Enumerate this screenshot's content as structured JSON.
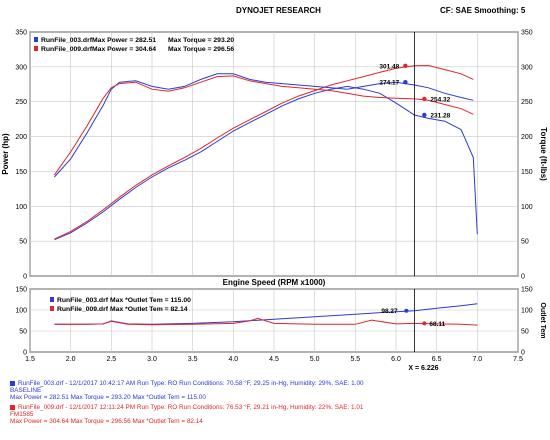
{
  "header": {
    "title": "DYNOJET RESEARCH",
    "right": "CF: SAE  Smoothing: 5"
  },
  "colors": {
    "run1": "#2b3bd6",
    "run2": "#e0262a",
    "grid": "#c8c8c8",
    "marker": "#000000"
  },
  "chart_data": [
    {
      "type": "line",
      "xlabel": "Engine Speed (RPM x1000)",
      "ylabel": "Power (hp)",
      "y2label": "Torque (ft-lbs)",
      "xlim": [
        1.5,
        7.5
      ],
      "ylim": [
        0,
        350
      ],
      "x_ticks": [
        "1.5",
        "2.0",
        "2.5",
        "3.0",
        "3.5",
        "4.0",
        "4.5",
        "5.0",
        "5.5",
        "6.0",
        "6.5",
        "7.0",
        "7.5"
      ],
      "y_ticks": [
        "0",
        "50",
        "100",
        "150",
        "200",
        "250",
        "300",
        "350"
      ],
      "y2_ticks": [
        "0",
        "50",
        "100",
        "150",
        "200",
        "250",
        "300",
        "350"
      ],
      "legend": [
        {
          "run": "RunFile_003.drf",
          "max_power_label": "Max Power =",
          "max_power": "282.51",
          "max_torque_label": "Max Torque =",
          "max_torque": "293.20"
        },
        {
          "run": "RunFile_009.drf",
          "max_power_label": "Max Power =",
          "max_power": "304.64",
          "max_torque_label": "Max Torque =",
          "max_torque": "296.56"
        }
      ],
      "cursor": {
        "x": 6.226,
        "label": "X = 6.226"
      },
      "value_labels": [
        "301.48",
        "274.17",
        "254.32",
        "231.28"
      ],
      "series": [
        {
          "name": "RunFile_003.drf Power",
          "color": "run1",
          "x": [
            1.8,
            2.0,
            2.2,
            2.4,
            2.6,
            2.8,
            3.0,
            3.2,
            3.4,
            3.6,
            3.8,
            4.0,
            4.2,
            4.4,
            4.6,
            4.8,
            5.0,
            5.2,
            5.4,
            5.6,
            5.8,
            6.0,
            6.226,
            6.4,
            6.6,
            6.8,
            6.95,
            7.0
          ],
          "y": [
            52,
            62,
            76,
            92,
            110,
            127,
            142,
            155,
            166,
            178,
            193,
            208,
            220,
            232,
            244,
            254,
            262,
            268,
            272,
            268,
            262,
            248,
            231,
            226,
            222,
            210,
            170,
            60
          ]
        },
        {
          "name": "RunFile_009.drf Power",
          "color": "run2",
          "x": [
            1.8,
            2.0,
            2.2,
            2.4,
            2.6,
            2.8,
            3.0,
            3.2,
            3.4,
            3.6,
            3.8,
            4.0,
            4.2,
            4.4,
            4.6,
            4.8,
            5.0,
            5.2,
            5.4,
            5.6,
            5.8,
            6.0,
            6.226,
            6.4,
            6.6,
            6.8,
            6.95
          ],
          "y": [
            53,
            64,
            78,
            95,
            113,
            130,
            145,
            158,
            170,
            183,
            198,
            212,
            224,
            236,
            248,
            258,
            266,
            274,
            280,
            286,
            292,
            298,
            301.5,
            302,
            296,
            290,
            282
          ]
        },
        {
          "name": "RunFile_003.drf Torque",
          "color": "run1",
          "x": [
            1.8,
            2.0,
            2.2,
            2.4,
            2.5,
            2.6,
            2.8,
            3.0,
            3.2,
            3.4,
            3.6,
            3.8,
            4.0,
            4.2,
            4.4,
            4.6,
            4.8,
            5.0,
            5.2,
            5.4,
            5.6,
            5.8,
            6.0,
            6.226,
            6.4,
            6.6,
            6.8,
            6.95
          ],
          "y": [
            142,
            168,
            205,
            245,
            268,
            278,
            280,
            272,
            268,
            272,
            282,
            290,
            290,
            282,
            278,
            276,
            274,
            272,
            270,
            268,
            272,
            276,
            278,
            274,
            270,
            262,
            256,
            252
          ]
        },
        {
          "name": "RunFile_009.drf Torque",
          "color": "run2",
          "x": [
            1.8,
            2.0,
            2.2,
            2.4,
            2.5,
            2.6,
            2.8,
            3.0,
            3.2,
            3.4,
            3.6,
            3.8,
            4.0,
            4.2,
            4.4,
            4.6,
            4.8,
            5.0,
            5.2,
            5.4,
            5.6,
            5.8,
            6.0,
            6.226,
            6.4,
            6.6,
            6.8,
            6.95
          ],
          "y": [
            145,
            178,
            215,
            255,
            270,
            276,
            278,
            268,
            265,
            270,
            278,
            286,
            287,
            280,
            276,
            272,
            270,
            268,
            266,
            262,
            258,
            256,
            255,
            254,
            252,
            246,
            240,
            232
          ]
        }
      ]
    },
    {
      "type": "line",
      "ylabel": "Outlet Tem",
      "xlim": [
        1.5,
        7.5
      ],
      "ylim": [
        0,
        150
      ],
      "y_ticks": [
        "0",
        "50",
        "100",
        "150"
      ],
      "y2_ticks": [
        "0",
        "50",
        "100",
        "150"
      ],
      "legend": [
        {
          "run": "RunFile_003.drf",
          "label": "Max *Outlet Tem =",
          "value": "115.00"
        },
        {
          "run": "RunFile_009.drf",
          "label": "Max *Outlet Tem =",
          "value": "82.14"
        }
      ],
      "value_labels": [
        "98.27",
        "68.11"
      ],
      "series": [
        {
          "name": "RunFile_003.drf Outlet Tem",
          "color": "run1",
          "x": [
            1.8,
            2.2,
            2.4,
            2.5,
            2.7,
            3.0,
            3.5,
            4.0,
            4.5,
            5.0,
            5.5,
            6.0,
            6.226,
            6.5,
            6.8,
            7.0
          ],
          "y": [
            66,
            66,
            67,
            74,
            67,
            66,
            68,
            72,
            78,
            84,
            90,
            96,
            98.3,
            104,
            110,
            115
          ]
        },
        {
          "name": "RunFile_009.drf Outlet Tem",
          "color": "run2",
          "x": [
            1.8,
            2.2,
            2.4,
            2.5,
            2.7,
            3.0,
            3.5,
            4.0,
            4.2,
            4.3,
            4.5,
            5.0,
            5.5,
            5.7,
            6.0,
            6.226,
            6.5,
            6.8,
            7.0
          ],
          "y": [
            66,
            66,
            67,
            73,
            66,
            65,
            66,
            68,
            74,
            80,
            68,
            66,
            66,
            76,
            67,
            68.1,
            67,
            66,
            64
          ]
        }
      ]
    }
  ],
  "info": {
    "runs": [
      {
        "color": "run1",
        "line1": "RunFile_003.drf - 12/1/2017 10:42:17 AM  Run Type: RO  Run Conditions: 70.58 °F, 29.25 in-Hg,  Humidity: 29%, SAE: 1.00",
        "line2": "BASELINE",
        "line3": "Max Power = 282.51  Max Torque = 293.20  Max *Outlet Tem = 115.00"
      },
      {
        "color": "run2",
        "line1": "RunFile_009.drf - 12/1/2017 12:11:24 PM  Run Type: RO  Run Conditions: 76.53 °F, 29.21 in-Hg,  Humidity: 22%, SAE: 1.01",
        "line2": "FM1585",
        "line3": "Max Power = 304.64  Max Torque = 296.56  Max *Outlet Tem = 82.14"
      }
    ]
  }
}
